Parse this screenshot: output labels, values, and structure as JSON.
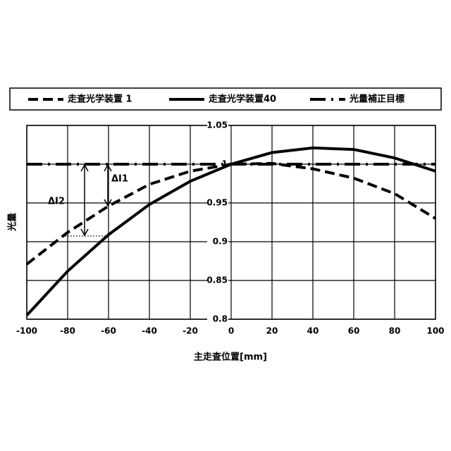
{
  "chart_data": {
    "type": "line",
    "x_label": "主走査位置[mm]",
    "y_label": "光量",
    "x": [
      -100,
      -80,
      -60,
      -40,
      -20,
      0,
      20,
      40,
      60,
      80,
      100
    ],
    "series": [
      {
        "name": "走査光学装置 1",
        "color": "#000000",
        "linestyle": "dashed",
        "values": [
          0.871,
          0.912,
          0.946,
          0.974,
          0.991,
          1.0,
          1.001,
          0.994,
          0.982,
          0.962,
          0.93
        ]
      },
      {
        "name": "走査光学装置40",
        "color": "#000000",
        "linestyle": "solid",
        "values": [
          0.805,
          0.862,
          0.909,
          0.948,
          0.978,
          1.0,
          1.015,
          1.021,
          1.019,
          1.008,
          0.991
        ]
      },
      {
        "name": "光量補正目標",
        "color": "#000000",
        "linestyle": "dashdot",
        "values": [
          1.0,
          1.0,
          1.0,
          1.0,
          1.0,
          1.0,
          1.0,
          1.0,
          1.0,
          1.0,
          1.0
        ]
      }
    ],
    "annotations": [
      "ΔI1",
      "ΔI2"
    ],
    "xlim": [
      -100,
      100
    ],
    "xticks": [
      -100,
      -80,
      -60,
      -40,
      -20,
      0,
      20,
      40,
      60,
      80,
      100
    ],
    "ylim": [
      0.8,
      1.05
    ],
    "yticks": [
      0.8,
      0.85,
      0.9,
      0.95,
      1,
      1.05
    ],
    "grid": true,
    "legend": "top"
  }
}
